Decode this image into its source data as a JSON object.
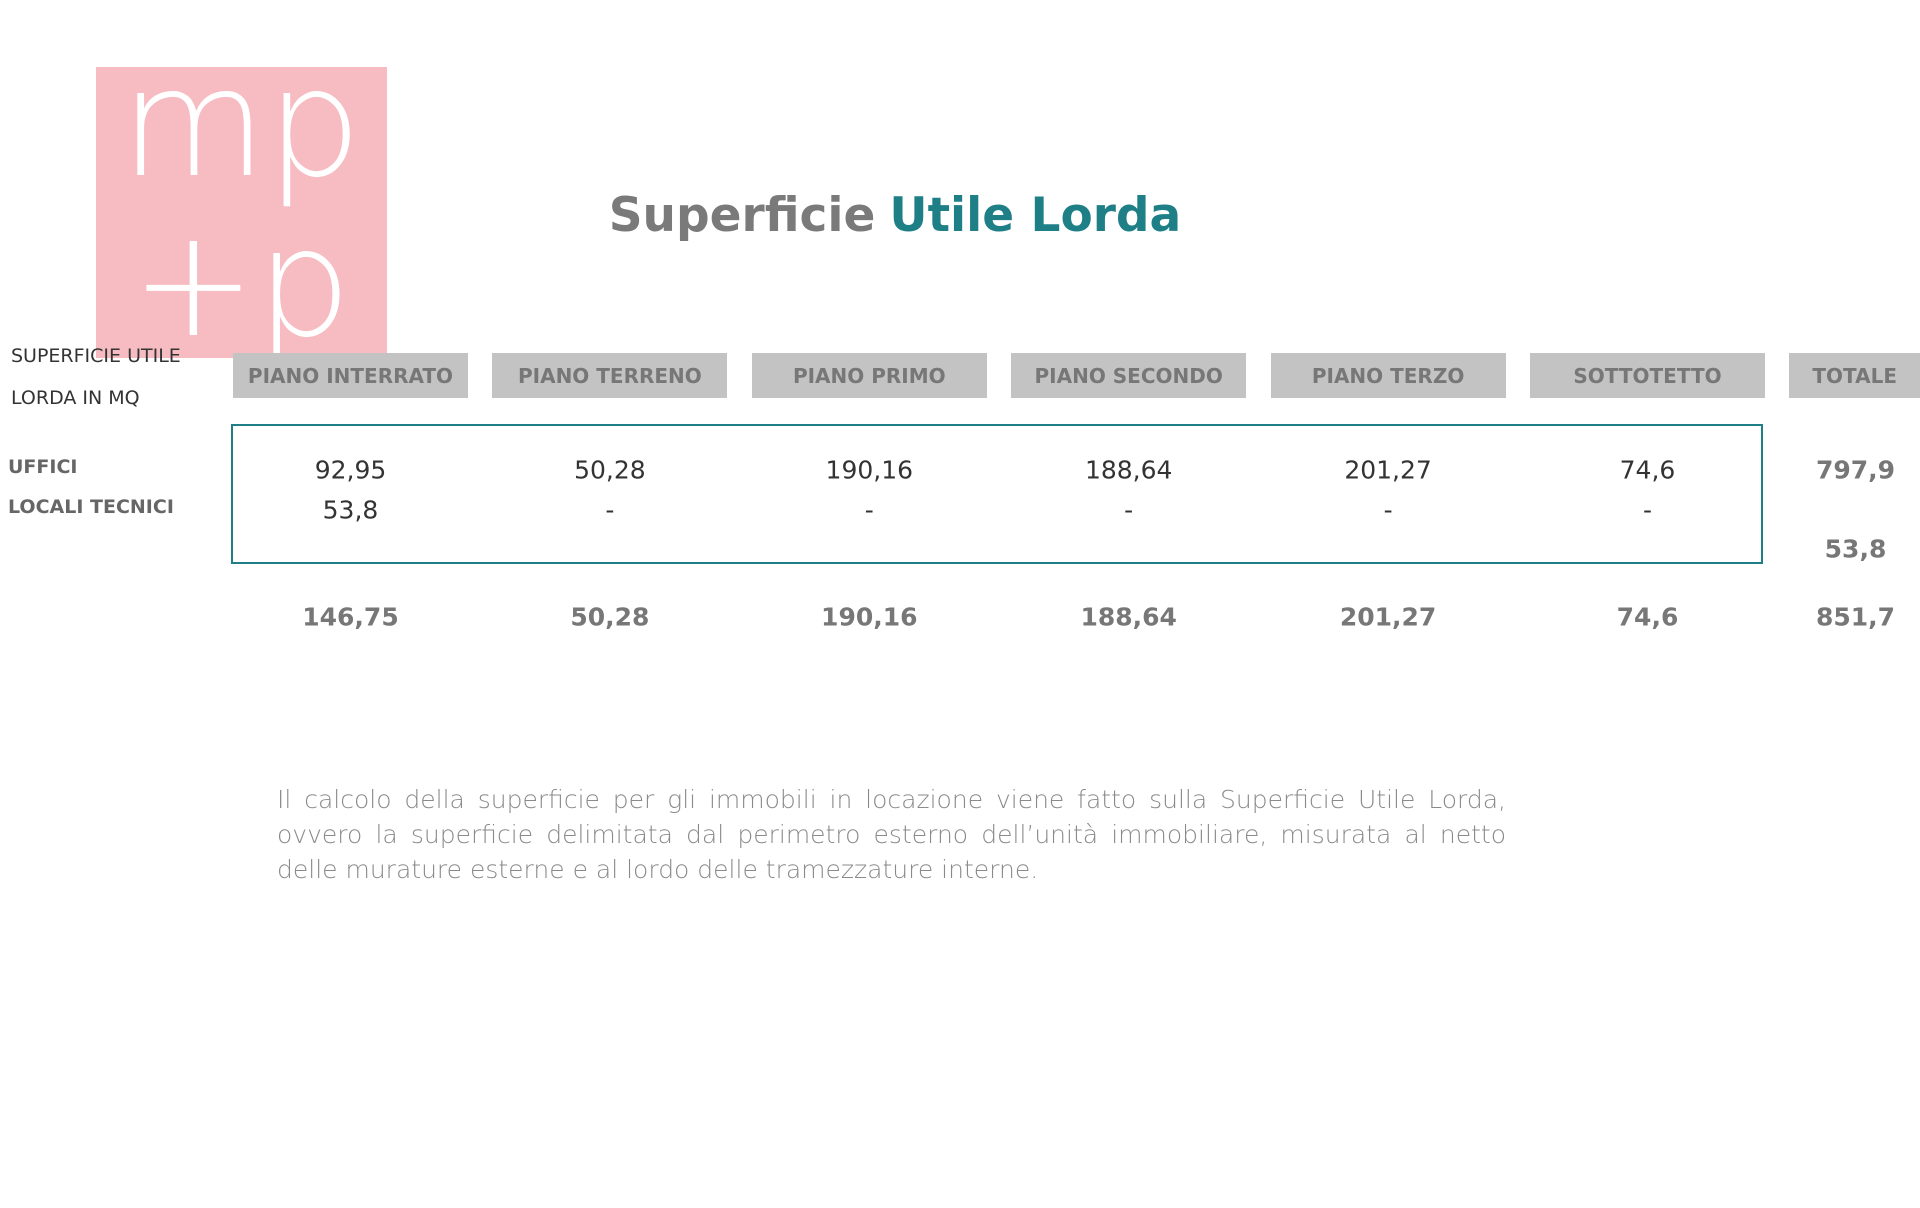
{
  "logo": [
    "mp",
    "+p"
  ],
  "title": {
    "gray": "Superficie",
    "teal": "Utile Lorda"
  },
  "table": {
    "corner": [
      "SUPERFICIE UTILE",
      "LORDA IN MQ"
    ],
    "columns": [
      "PIANO INTERRATO",
      "PIANO TERRENO",
      "PIANO PRIMO",
      "PIANO SECONDO",
      "PIANO TERZO",
      "SOTTOTETTO",
      "TOTALE"
    ],
    "rows": [
      {
        "label": "UFFICI",
        "cells": [
          "92,95",
          "50,28",
          "190,16",
          "188,64",
          "201,27",
          "74,6"
        ],
        "total": "797,9"
      },
      {
        "label": "LOCALI TECNICI",
        "cells": [
          "53,8",
          "-",
          "-",
          "-",
          "-",
          "-"
        ],
        "total": "53,8"
      }
    ],
    "totals": [
      "146,75",
      "50,28",
      "190,16",
      "188,64",
      "201,27",
      "74,6",
      "851,7"
    ]
  },
  "note": "Il calcolo della superficie per gli immobili in locazione viene fatto sulla Superficie  Utile Lorda, ovvero la superficie delimitata dal perimetro esterno dell’unità immobiliare, misurata al netto delle murature esterne e al lordo delle tramezzature interne."
}
